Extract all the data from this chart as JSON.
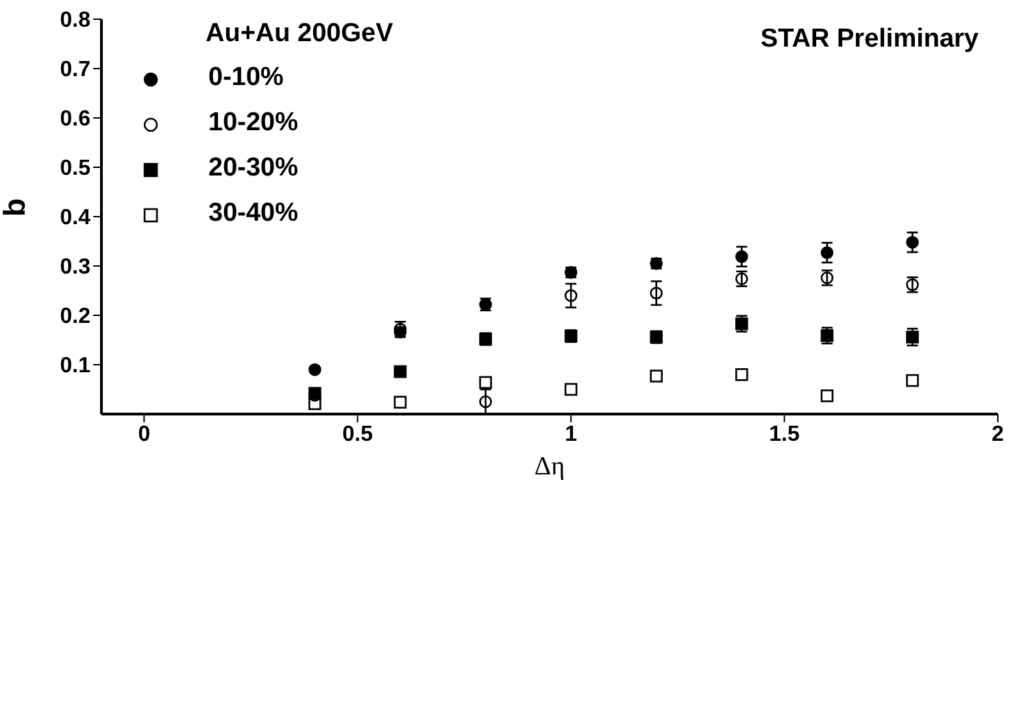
{
  "chart_data": {
    "type": "scatter",
    "xlabel": "Δη",
    "ylabel": "b",
    "legend_title": "Au+Au 200GeV",
    "annotations": [
      "STAR Preliminary"
    ],
    "x": [
      0.4,
      0.6,
      0.8,
      1.0,
      1.2,
      1.4,
      1.6,
      1.8
    ],
    "xlim": [
      -0.1,
      2
    ],
    "xticks": [
      0,
      0.5,
      1,
      1.5,
      2
    ],
    "ylim": [
      0,
      0.8
    ],
    "yticks": [
      0.1,
      0.2,
      0.3,
      0.4,
      0.5,
      0.6,
      0.7,
      0.8
    ],
    "legend": "top left",
    "grid": false,
    "series": [
      {
        "name": "0-10%",
        "color": "#000000",
        "marker": "circle",
        "values": [
          0.09,
          0.166,
          0.222,
          0.287,
          0.305,
          0.319,
          0.327,
          0.348
        ],
        "errors": [
          null,
          0.01,
          0.012,
          0.01,
          0.01,
          0.02,
          0.02,
          0.02
        ]
      },
      {
        "name": "10-20%",
        "color": "#000000",
        "marker": "circle-open",
        "values": [
          0.038,
          0.172,
          0.025,
          0.24,
          0.245,
          0.274,
          0.276,
          0.262
        ],
        "errors": [
          null,
          0.015,
          0.025,
          0.024,
          0.024,
          0.015,
          0.015,
          0.015
        ]
      },
      {
        "name": "20-30%",
        "color": "#000000",
        "marker": "square",
        "values": [
          0.042,
          0.086,
          0.152,
          0.158,
          0.156,
          0.183,
          0.159,
          0.156
        ],
        "errors": [
          null,
          null,
          0.012,
          0.012,
          0.012,
          0.016,
          0.016,
          0.017
        ]
      },
      {
        "name": "30-40%",
        "color": "#000000",
        "marker": "square-open",
        "values": [
          0.021,
          0.024,
          0.064,
          0.05,
          0.077,
          0.08,
          0.037,
          0.068
        ],
        "errors": [
          null,
          null,
          null,
          null,
          null,
          null,
          null,
          null
        ]
      }
    ]
  }
}
